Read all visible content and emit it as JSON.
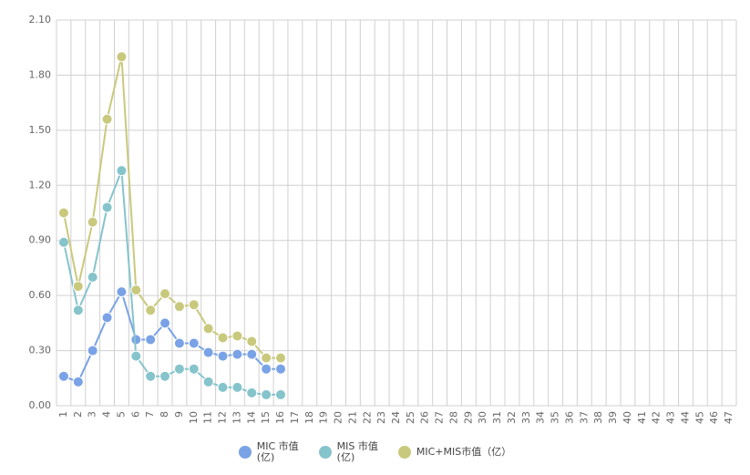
{
  "chart_data": {
    "type": "line",
    "categories": [
      "1",
      "2",
      "3",
      "4",
      "5",
      "6",
      "7",
      "8",
      "9",
      "10",
      "11",
      "12",
      "13",
      "14",
      "15",
      "16",
      "17",
      "18",
      "19",
      "20",
      "21",
      "22",
      "23",
      "24",
      "25",
      "26",
      "27",
      "28",
      "29",
      "30",
      "31",
      "32",
      "33",
      "34",
      "35",
      "36",
      "37",
      "38",
      "39",
      "40",
      "41",
      "42",
      "43",
      "44",
      "45",
      "46",
      "47"
    ],
    "series": [
      {
        "name": "MIC 市值\n(亿)",
        "color": "#7aa2e6",
        "values": [
          0.16,
          0.13,
          0.3,
          0.48,
          0.62,
          0.36,
          0.36,
          0.45,
          0.34,
          0.34,
          0.29,
          0.27,
          0.28,
          0.28,
          0.2,
          0.2,
          null,
          null,
          null,
          null,
          null,
          null,
          null,
          null,
          null,
          null,
          null,
          null,
          null,
          null,
          null,
          null,
          null,
          null,
          null,
          null,
          null,
          null,
          null,
          null,
          null,
          null,
          null,
          null,
          null,
          null,
          null
        ]
      },
      {
        "name": "MIS 市值\n(亿)",
        "color": "#86c4cc",
        "values": [
          0.89,
          0.52,
          0.7,
          1.08,
          1.28,
          0.27,
          0.16,
          0.16,
          0.2,
          0.2,
          0.13,
          0.1,
          0.1,
          0.07,
          0.06,
          0.06,
          null,
          null,
          null,
          null,
          null,
          null,
          null,
          null,
          null,
          null,
          null,
          null,
          null,
          null,
          null,
          null,
          null,
          null,
          null,
          null,
          null,
          null,
          null,
          null,
          null,
          null,
          null,
          null,
          null,
          null,
          null
        ]
      },
      {
        "name": "MIC+MIS市值（亿）",
        "color": "#c9c97e",
        "values": [
          1.05,
          0.65,
          1.0,
          1.56,
          1.9,
          0.63,
          0.52,
          0.61,
          0.54,
          0.55,
          0.42,
          0.37,
          0.38,
          0.35,
          0.26,
          0.26,
          null,
          null,
          null,
          null,
          null,
          null,
          null,
          null,
          null,
          null,
          null,
          null,
          null,
          null,
          null,
          null,
          null,
          null,
          null,
          null,
          null,
          null,
          null,
          null,
          null,
          null,
          null,
          null,
          null,
          null,
          null
        ]
      }
    ],
    "ylim": [
      0,
      2.1
    ],
    "yticks": [
      {
        "value": 0,
        "label": "0.00"
      },
      {
        "value": 0.3,
        "label": "0.30"
      },
      {
        "value": 0.6,
        "label": "0.60"
      },
      {
        "value": 0.9,
        "label": "0.90"
      },
      {
        "value": 1.2,
        "label": "1.20"
      },
      {
        "value": 1.5,
        "label": "1.50"
      },
      {
        "value": 1.8,
        "label": "1.80"
      },
      {
        "value": 2.1,
        "label": "2.10"
      }
    ],
    "grid": true
  }
}
